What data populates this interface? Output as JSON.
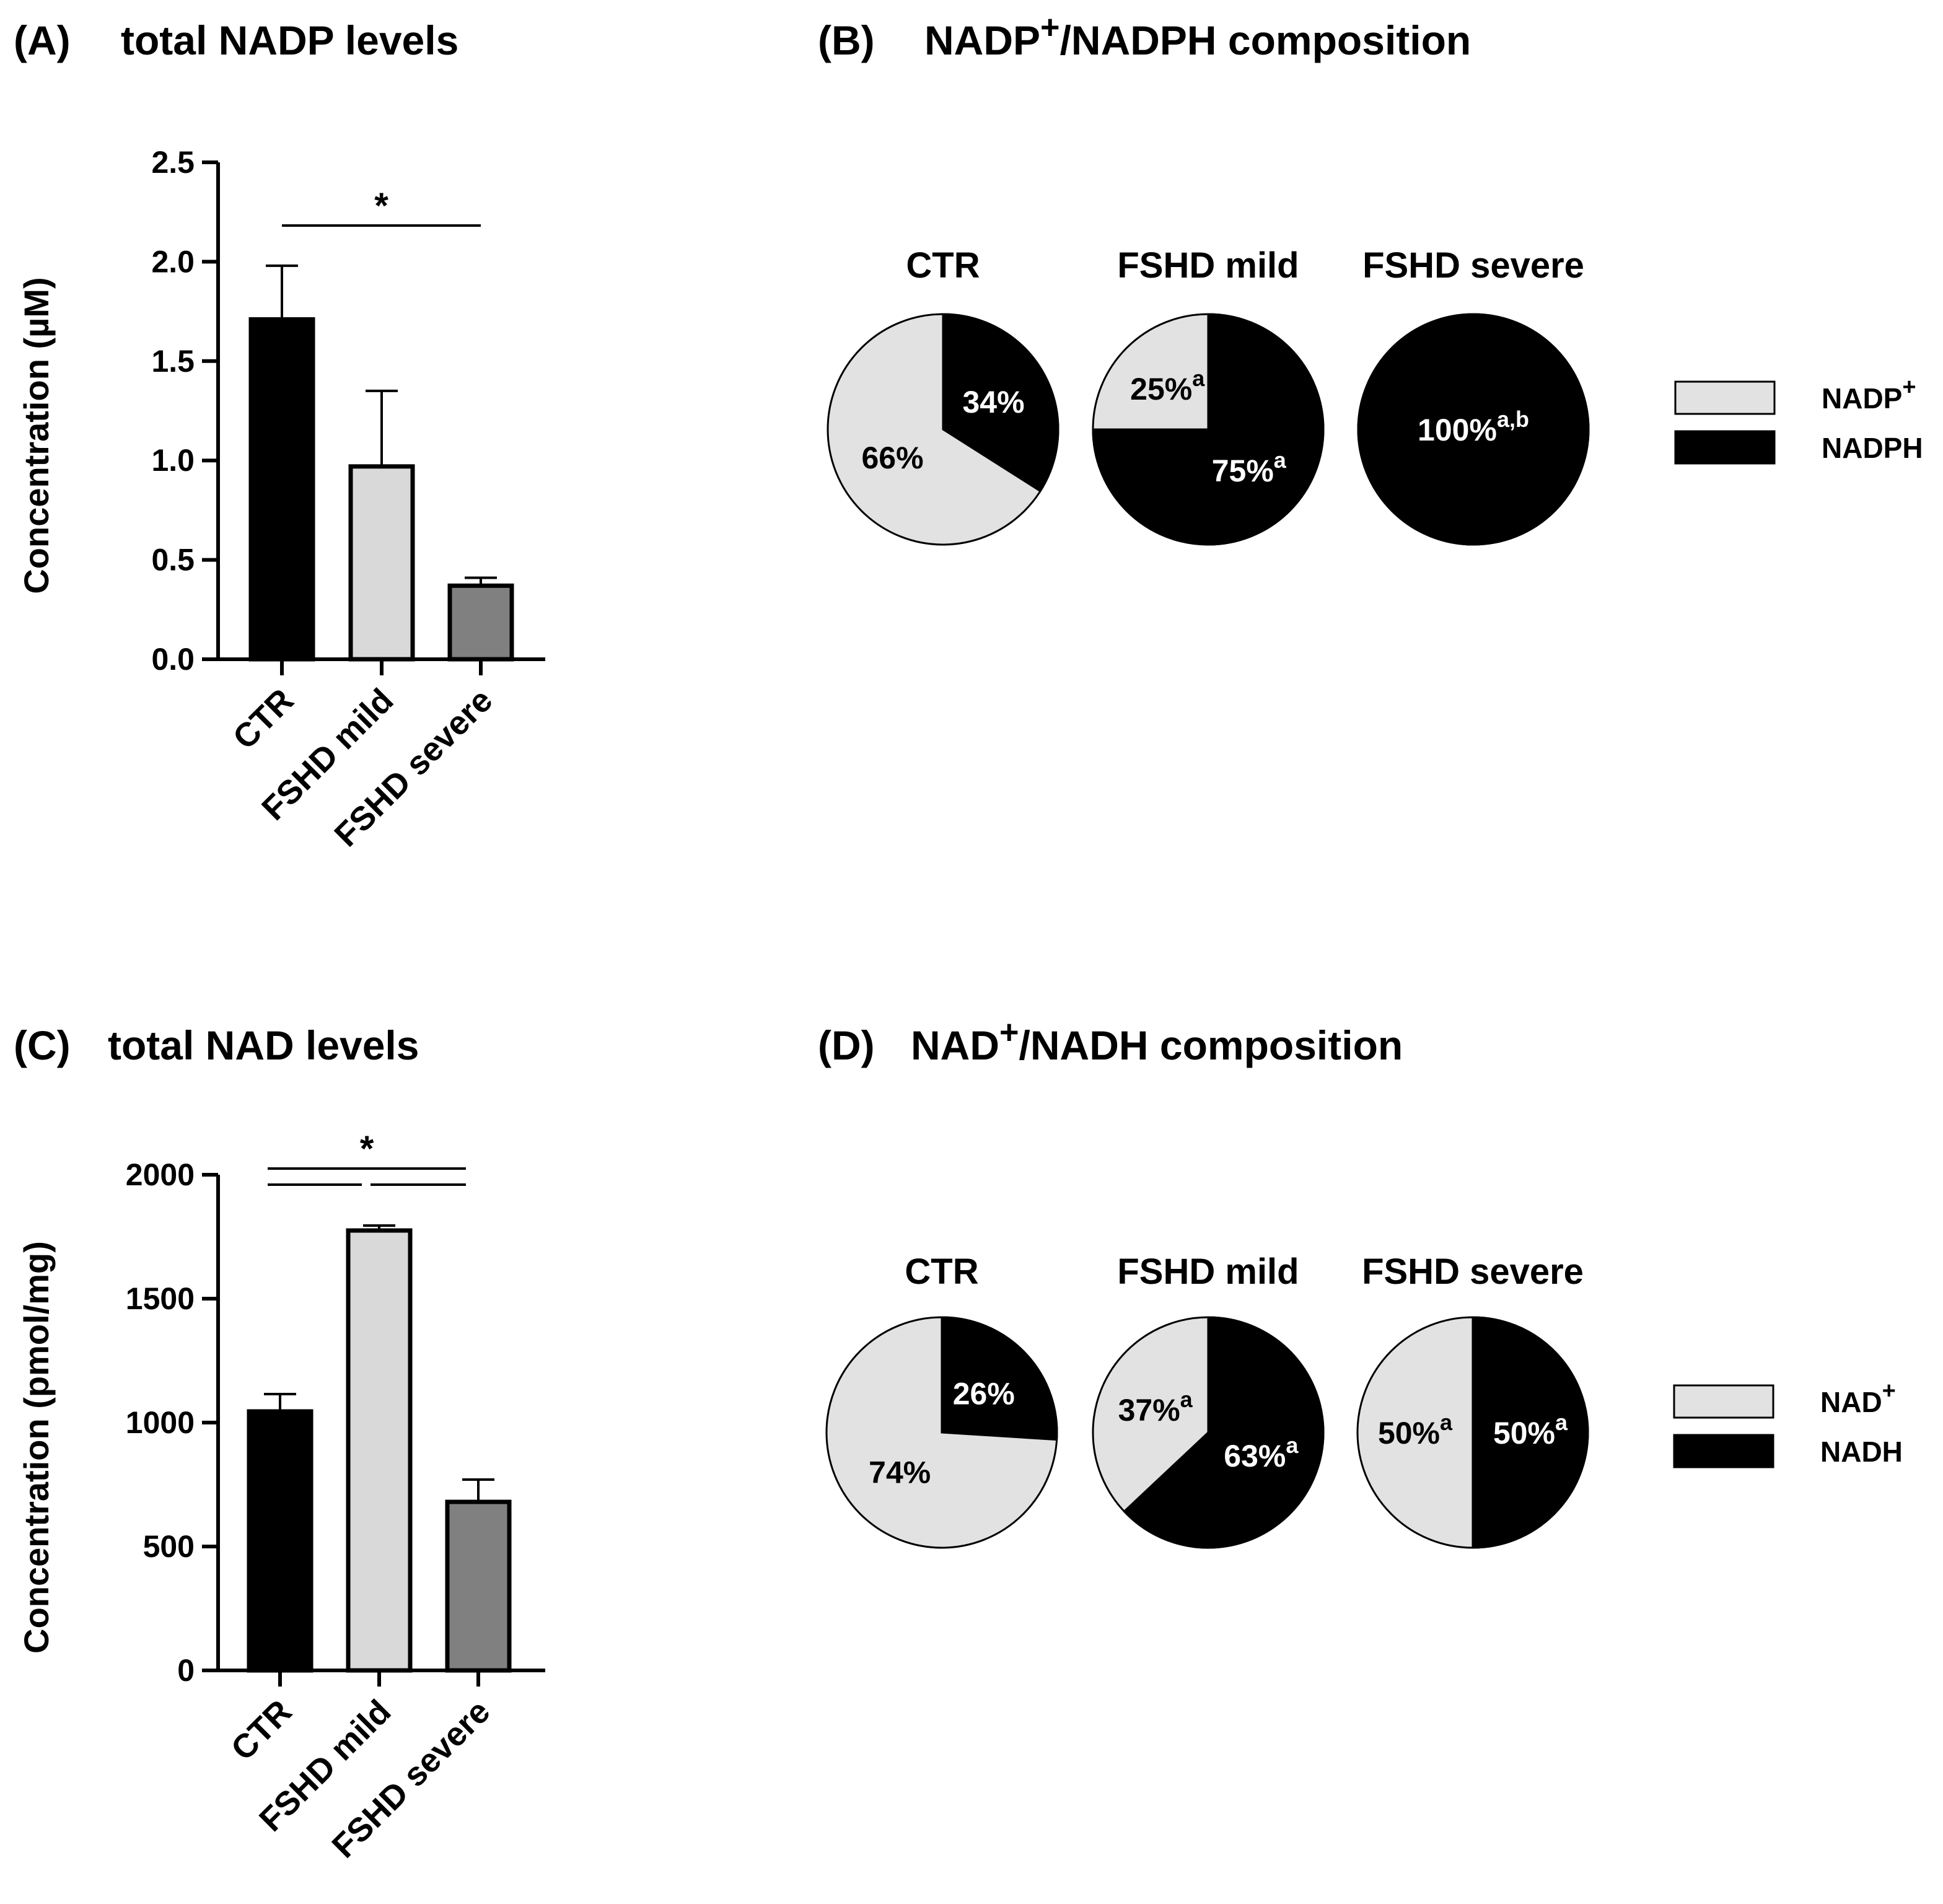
{
  "panels": {
    "A": {
      "letter": "(A)",
      "title": "total NADP levels"
    },
    "B": {
      "letter": "(B)",
      "title_main": "NADP",
      "title_sup": "+",
      "title_rest": "/NADPH composition"
    },
    "C": {
      "letter": "(C)",
      "title": "total NAD levels"
    },
    "D": {
      "letter": "(D)",
      "title_main": "NAD",
      "title_sup": "+",
      "title_rest": "/NADH composition"
    }
  },
  "colors": {
    "CTR": "#000000",
    "FSHD mild": "#d9d9d9",
    "FSHD severe": "#808080",
    "oxidized": "#e2e2e2",
    "reduced": "#000000"
  },
  "chart_data": [
    {
      "id": "A",
      "type": "bar",
      "title": "total NADP levels",
      "ylabel": "Concentration (µM)",
      "ylim": [
        0,
        2.5
      ],
      "yticks": [
        0.0,
        0.5,
        1.0,
        1.5,
        2.0,
        2.5
      ],
      "ytick_labels": [
        "0.0",
        "0.5",
        "1.0",
        "1.5",
        "2.0",
        "2.5"
      ],
      "categories": [
        "CTR",
        "FSHD mild",
        "FSHD severe"
      ],
      "values": [
        1.71,
        0.97,
        0.37
      ],
      "errors": [
        0.27,
        0.38,
        0.04
      ],
      "significance": [
        {
          "from": 0,
          "to": 2,
          "label": "*"
        }
      ]
    },
    {
      "id": "C",
      "type": "bar",
      "title": "total NAD levels",
      "ylabel": "Concentration (pmol/mg)",
      "ylim": [
        0,
        2000
      ],
      "yticks": [
        0,
        500,
        1000,
        1500,
        2000
      ],
      "ytick_labels": [
        "0",
        "500",
        "1000",
        "1500",
        "2000"
      ],
      "categories": [
        "CTR",
        "FSHD mild",
        "FSHD severe"
      ],
      "values": [
        1045,
        1775,
        680
      ],
      "errors": [
        70,
        20,
        90
      ],
      "significance": [
        {
          "from": 0,
          "to": 2,
          "label": "*"
        },
        {
          "from": 0,
          "to": 1,
          "label": ""
        },
        {
          "from": 1,
          "to": 2,
          "label": ""
        }
      ]
    },
    {
      "id": "B",
      "type": "pie",
      "title": "NADP+/NADPH composition",
      "legend": [
        {
          "main": "NADP",
          "sup": "+"
        },
        {
          "main": "NADPH",
          "sup": ""
        }
      ],
      "pies": [
        {
          "name": "CTR",
          "reduced": 34,
          "oxidized": 66,
          "reduced_label": "34%",
          "reduced_sup": "",
          "oxidized_label": "66%",
          "oxidized_sup": ""
        },
        {
          "name": "FSHD mild",
          "reduced": 75,
          "oxidized": 25,
          "reduced_label": "75%",
          "reduced_sup": "a",
          "oxidized_label": "25%",
          "oxidized_sup": "a"
        },
        {
          "name": "FSHD severe",
          "reduced": 100,
          "oxidized": 0,
          "reduced_label": "100%",
          "reduced_sup": "a,b",
          "oxidized_label": "",
          "oxidized_sup": ""
        }
      ]
    },
    {
      "id": "D",
      "type": "pie",
      "title": "NAD+/NADH composition",
      "legend": [
        {
          "main": "NAD",
          "sup": "+"
        },
        {
          "main": "NADH",
          "sup": ""
        }
      ],
      "pies": [
        {
          "name": "CTR",
          "reduced": 26,
          "oxidized": 74,
          "reduced_label": "26%",
          "reduced_sup": "",
          "oxidized_label": "74%",
          "oxidized_sup": ""
        },
        {
          "name": "FSHD mild",
          "reduced": 63,
          "oxidized": 37,
          "reduced_label": "63%",
          "reduced_sup": "a",
          "oxidized_label": "37%",
          "oxidized_sup": "a"
        },
        {
          "name": "FSHD severe",
          "reduced": 50,
          "oxidized": 50,
          "reduced_label": "50%",
          "reduced_sup": "a",
          "oxidized_label": "50%",
          "oxidized_sup": "a"
        }
      ]
    }
  ]
}
